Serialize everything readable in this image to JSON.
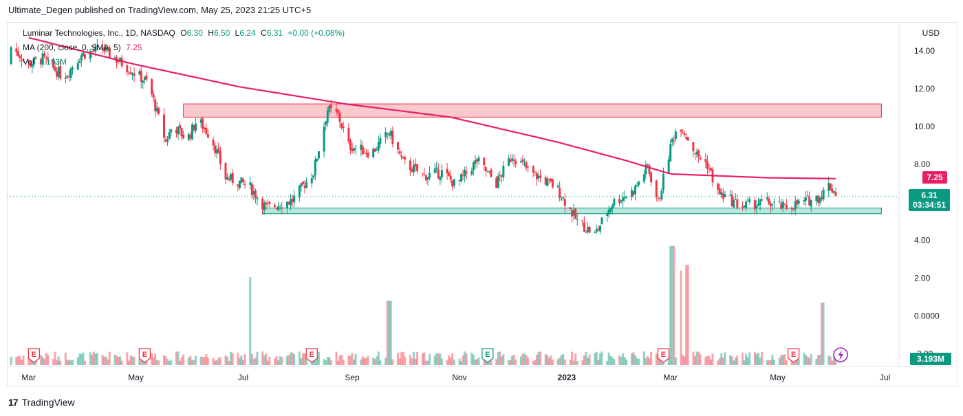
{
  "header": {
    "publisher": "Ultimate_Degen published on TradingView.com, May 25, 2023 21:25 UTC+5"
  },
  "legend": {
    "symbol": "Luminar Technologies, Inc., 1D, NASDAQ",
    "open_label": "O",
    "open": "6.30",
    "high_label": "H",
    "high": "6.50",
    "low_label": "L",
    "low": "6.24",
    "close_label": "C",
    "close": "6.31",
    "change": "+0.00 (+0.08%)",
    "ma_label": "MA (200, close, 0, SMA, 5)",
    "ma_value": "7.25",
    "vol_label": "Vol",
    "vol_value": "3.193M"
  },
  "price_axis": {
    "currency": "USD",
    "ticks": [
      "14.00",
      "12.00",
      "10.00",
      "8.00",
      "4.00",
      "2.00",
      "0.0000",
      "-2.00"
    ],
    "ma_tag": "7.25",
    "price_tag": "6.31",
    "countdown": "03:34:51",
    "volume_tag": "3.193M"
  },
  "time_axis": {
    "labels": [
      "Mar",
      "May",
      "Jul",
      "Sep",
      "Nov",
      "2023",
      "Mar",
      "May",
      "Jul"
    ]
  },
  "earnings_markers": [
    "E",
    "E",
    "E",
    "E",
    "E",
    "E"
  ],
  "footer": {
    "brand": "TradingView",
    "logo": "17"
  },
  "colors": {
    "up": "#089981",
    "down": "#f23645",
    "ma": "#e91e63",
    "resistance_fill": "#f8c8cc",
    "support_fill": "#b9e6dd"
  },
  "chart_data": {
    "type": "candlestick",
    "symbol": "LAZR",
    "interval": "1D",
    "ylim": [
      -2.6,
      15.2
    ],
    "price_ticks": [
      14,
      12,
      10,
      8,
      4,
      2,
      0,
      -2
    ],
    "x_labels": [
      "Mar",
      "May",
      "Jul",
      "Sep",
      "Nov",
      "2023",
      "Mar",
      "May",
      "Jul"
    ],
    "x_label_days": [
      0,
      61,
      122,
      184,
      245,
      306,
      365,
      426,
      487
    ],
    "x_domain_days": [
      -12,
      495
    ],
    "price_waypoints": [
      {
        "day": -12,
        "price": 14.4
      },
      {
        "day": 0,
        "price": 13.3
      },
      {
        "day": 8,
        "price": 13.6
      },
      {
        "day": 20,
        "price": 12.6
      },
      {
        "day": 30,
        "price": 13.8
      },
      {
        "day": 42,
        "price": 14.1
      },
      {
        "day": 55,
        "price": 13.2
      },
      {
        "day": 68,
        "price": 12.3
      },
      {
        "day": 78,
        "price": 9.2
      },
      {
        "day": 82,
        "price": 10.1
      },
      {
        "day": 90,
        "price": 9.3
      },
      {
        "day": 96,
        "price": 10.4
      },
      {
        "day": 104,
        "price": 9.4
      },
      {
        "day": 112,
        "price": 7.3
      },
      {
        "day": 125,
        "price": 6.9
      },
      {
        "day": 135,
        "price": 5.7
      },
      {
        "day": 150,
        "price": 6.1
      },
      {
        "day": 162,
        "price": 7.6
      },
      {
        "day": 170,
        "price": 10.9
      },
      {
        "day": 176,
        "price": 10.6
      },
      {
        "day": 182,
        "price": 9.0
      },
      {
        "day": 195,
        "price": 8.6
      },
      {
        "day": 205,
        "price": 9.7
      },
      {
        "day": 213,
        "price": 8.1
      },
      {
        "day": 225,
        "price": 7.4
      },
      {
        "day": 235,
        "price": 7.6
      },
      {
        "day": 243,
        "price": 6.9
      },
      {
        "day": 255,
        "price": 8.2
      },
      {
        "day": 266,
        "price": 7.0
      },
      {
        "day": 275,
        "price": 8.5
      },
      {
        "day": 285,
        "price": 7.6
      },
      {
        "day": 300,
        "price": 6.8
      },
      {
        "day": 312,
        "price": 5.0
      },
      {
        "day": 322,
        "price": 4.3
      },
      {
        "day": 332,
        "price": 6.0
      },
      {
        "day": 344,
        "price": 6.6
      },
      {
        "day": 352,
        "price": 7.9
      },
      {
        "day": 358,
        "price": 6.0
      },
      {
        "day": 366,
        "price": 9.3
      },
      {
        "day": 370,
        "price": 10.2
      },
      {
        "day": 380,
        "price": 8.5
      },
      {
        "day": 386,
        "price": 8.0
      },
      {
        "day": 392,
        "price": 6.5
      },
      {
        "day": 405,
        "price": 5.8
      },
      {
        "day": 420,
        "price": 6.0
      },
      {
        "day": 430,
        "price": 5.7
      },
      {
        "day": 440,
        "price": 6.0
      },
      {
        "day": 450,
        "price": 6.3
      },
      {
        "day": 455,
        "price": 6.9
      },
      {
        "day": 461,
        "price": 6.31
      }
    ],
    "ma_200": [
      {
        "day": 0,
        "price": 14.7
      },
      {
        "day": 60,
        "price": 13.3
      },
      {
        "day": 120,
        "price": 12.1
      },
      {
        "day": 180,
        "price": 11.2
      },
      {
        "day": 240,
        "price": 10.5
      },
      {
        "day": 300,
        "price": 9.2
      },
      {
        "day": 340,
        "price": 8.2
      },
      {
        "day": 365,
        "price": 7.5
      },
      {
        "day": 420,
        "price": 7.3
      },
      {
        "day": 461,
        "price": 7.25
      }
    ],
    "zones": [
      {
        "name": "resistance",
        "from_day": 88,
        "to_day": 485,
        "low": 10.5,
        "high": 11.2
      },
      {
        "name": "support",
        "from_day": 133,
        "to_day": 485,
        "low": 5.4,
        "high": 5.7
      }
    ],
    "earnings_days": [
      3,
      66,
      161,
      261,
      361,
      435
    ],
    "last_price": 6.31,
    "ma_last": 7.25,
    "volume_spikes": [
      {
        "day": 125,
        "value": 2.05
      },
      {
        "day": 205,
        "value": 0.8
      },
      {
        "day": 366,
        "value": 3.7
      },
      {
        "day": 370,
        "value": 2.4
      },
      {
        "day": 375,
        "value": 2.7
      },
      {
        "day": 452,
        "value": 0.7
      }
    ]
  }
}
